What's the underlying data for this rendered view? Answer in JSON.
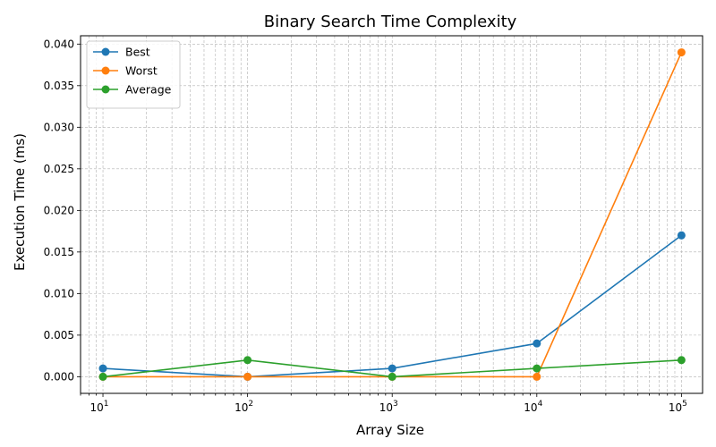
{
  "chart_data": {
    "type": "line",
    "title": "Binary Search Time Complexity",
    "xlabel": "Array Size",
    "ylabel": "Execution Time (ms)",
    "x_scale": "log",
    "x": [
      10,
      100,
      1000,
      10000,
      100000
    ],
    "x_tick_labels": [
      {
        "base": "10",
        "exp": "1"
      },
      {
        "base": "10",
        "exp": "2"
      },
      {
        "base": "10",
        "exp": "3"
      },
      {
        "base": "10",
        "exp": "4"
      },
      {
        "base": "10",
        "exp": "5"
      }
    ],
    "xlim": [
      7,
      140000
    ],
    "ylim": [
      -0.002,
      0.041
    ],
    "y_ticks": [
      0.0,
      0.005,
      0.01,
      0.015,
      0.02,
      0.025,
      0.03,
      0.035,
      0.04
    ],
    "y_tick_labels": [
      "0.000",
      "0.005",
      "0.010",
      "0.015",
      "0.020",
      "0.025",
      "0.030",
      "0.035",
      "0.040"
    ],
    "grid": true,
    "legend_position": "top-left",
    "series": [
      {
        "name": "Best",
        "color": "#1f77b4",
        "values": [
          0.001,
          0.0,
          0.001,
          0.004,
          0.017
        ]
      },
      {
        "name": "Worst",
        "color": "#ff7f0e",
        "values": [
          0.0,
          0.0,
          0.0,
          0.0,
          0.039
        ]
      },
      {
        "name": "Average",
        "color": "#2ca02c",
        "values": [
          0.0,
          0.002,
          0.0,
          0.001,
          0.002
        ]
      }
    ]
  }
}
